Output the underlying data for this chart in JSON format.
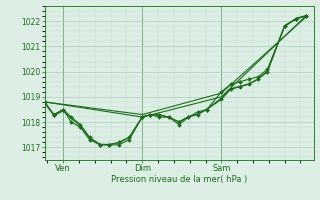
{
  "bg_color": "#ddeee5",
  "grid_color_major": "#aaccbb",
  "grid_color_minor": "#c0ddd0",
  "line_color": "#1a6e1a",
  "xlabel": "Pression niveau de la mer( hPa )",
  "yticks": [
    1017,
    1018,
    1019,
    1020,
    1021,
    1022
  ],
  "ylim": [
    1016.5,
    1022.6
  ],
  "xlim": [
    0.0,
    1.02
  ],
  "xtick_labels": [
    "Ven",
    "Dim",
    "Sam"
  ],
  "xtick_positions": [
    0.07,
    0.37,
    0.67
  ],
  "vline_positions": [
    0.07,
    0.37,
    0.67
  ],
  "series1_x": [
    0.0,
    0.035,
    0.07,
    0.1,
    0.135,
    0.17,
    0.21,
    0.245,
    0.28,
    0.32,
    0.37,
    0.4,
    0.435,
    0.47,
    0.51,
    0.545,
    0.58,
    0.615,
    0.67,
    0.705,
    0.74,
    0.775,
    0.81,
    0.845,
    0.91,
    0.955,
    0.99
  ],
  "series1_y": [
    1018.8,
    1018.3,
    1018.5,
    1018.2,
    1017.9,
    1017.4,
    1017.1,
    1017.1,
    1017.2,
    1017.4,
    1018.2,
    1018.3,
    1018.3,
    1018.2,
    1018.0,
    1018.2,
    1018.3,
    1018.5,
    1018.9,
    1019.3,
    1019.4,
    1019.5,
    1019.7,
    1020.0,
    1021.8,
    1022.1,
    1022.2
  ],
  "series2_x": [
    0.0,
    0.37,
    0.67,
    0.99
  ],
  "series2_y": [
    1018.8,
    1018.2,
    1019.0,
    1022.2
  ],
  "series3_x": [
    0.0,
    0.37,
    0.67,
    0.99
  ],
  "series3_y": [
    1018.8,
    1018.3,
    1019.15,
    1022.15
  ],
  "series4_x": [
    0.035,
    0.07,
    0.1,
    0.135,
    0.17,
    0.21,
    0.245,
    0.28,
    0.32,
    0.37,
    0.4,
    0.435,
    0.47,
    0.51,
    0.545,
    0.58,
    0.615,
    0.67,
    0.705,
    0.74,
    0.775,
    0.81,
    0.845,
    0.91,
    0.955,
    0.99
  ],
  "series4_y": [
    1018.3,
    1018.5,
    1018.0,
    1017.8,
    1017.3,
    1017.1,
    1017.1,
    1017.1,
    1017.3,
    1018.2,
    1018.3,
    1018.2,
    1018.2,
    1017.9,
    1018.2,
    1018.4,
    1018.5,
    1019.2,
    1019.5,
    1019.6,
    1019.7,
    1019.8,
    1020.1,
    1021.8,
    1022.1,
    1022.2
  ],
  "series5_x": [
    0.0,
    0.035,
    0.07,
    0.1,
    0.135,
    0.17,
    0.21,
    0.245,
    0.28,
    0.32,
    0.37,
    0.4,
    0.435,
    0.47,
    0.51,
    0.545,
    0.58,
    0.615,
    0.67,
    0.705,
    0.74,
    0.775,
    0.81,
    0.845,
    0.91,
    0.955,
    0.99
  ],
  "series5_y": [
    1018.75,
    1018.25,
    1018.45,
    1018.15,
    1017.85,
    1017.38,
    1017.12,
    1017.12,
    1017.18,
    1017.38,
    1018.22,
    1018.28,
    1018.28,
    1018.18,
    1018.02,
    1018.22,
    1018.32,
    1018.52,
    1018.95,
    1019.32,
    1019.42,
    1019.52,
    1019.72,
    1020.02,
    1021.82,
    1022.12,
    1022.22
  ]
}
